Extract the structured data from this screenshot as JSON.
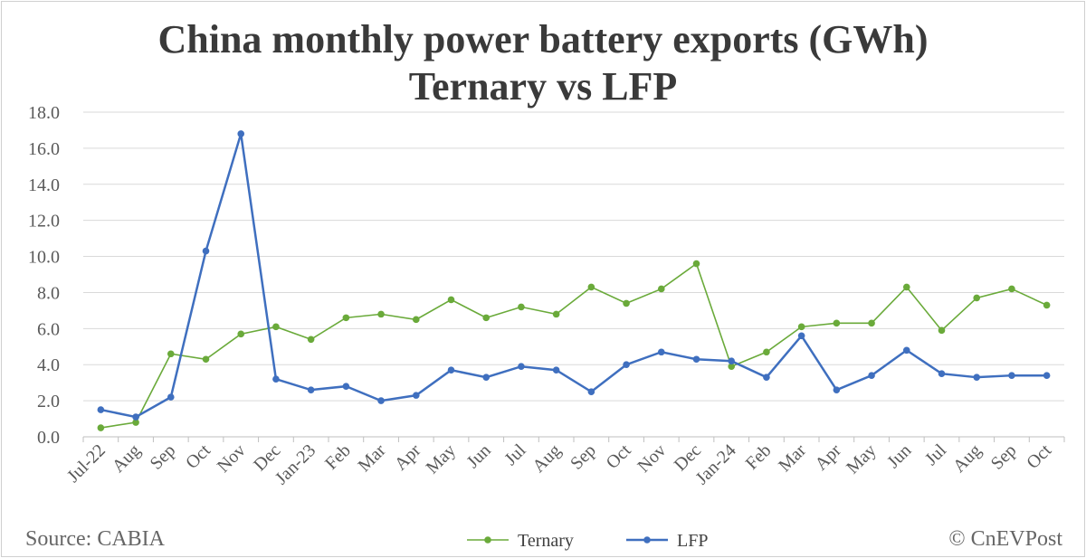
{
  "chart_data": {
    "type": "line",
    "title": "China monthly power battery exports (GWh)",
    "subtitle": "Ternary vs LFP",
    "xlabel": "",
    "ylabel": "",
    "ylim": [
      0,
      18
    ],
    "yticks": [
      "0.0",
      "2.0",
      "4.0",
      "6.0",
      "8.0",
      "10.0",
      "12.0",
      "14.0",
      "16.0",
      "18.0"
    ],
    "grid": true,
    "legend": "bottom",
    "categories": [
      "Jul-22",
      "Aug",
      "Sep",
      "Oct",
      "Nov",
      "Dec",
      "Jan-23",
      "Feb",
      "Mar",
      "Apr",
      "May",
      "Jun",
      "Jul",
      "Aug",
      "Sep",
      "Oct",
      "Nov",
      "Dec",
      "Jan-24",
      "Feb",
      "Mar",
      "Apr",
      "May",
      "Jun",
      "Jul",
      "Aug",
      "Sep",
      "Oct"
    ],
    "series": [
      {
        "name": "Ternary",
        "color": "#6aaa3a",
        "values": [
          0.5,
          0.8,
          4.6,
          4.3,
          5.7,
          6.1,
          5.4,
          6.6,
          6.8,
          6.5,
          7.6,
          6.6,
          7.2,
          6.8,
          8.3,
          7.4,
          8.2,
          9.6,
          3.9,
          4.7,
          6.1,
          6.3,
          6.3,
          8.3,
          5.9,
          7.7,
          8.2,
          7.3
        ]
      },
      {
        "name": "LFP",
        "color": "#3f6fbf",
        "values": [
          1.5,
          1.1,
          2.2,
          10.3,
          16.8,
          3.2,
          2.6,
          2.8,
          2.0,
          2.3,
          3.7,
          3.3,
          3.9,
          3.7,
          2.5,
          4.0,
          4.7,
          4.3,
          4.2,
          3.3,
          5.6,
          2.6,
          3.4,
          4.8,
          3.5,
          3.3,
          3.4,
          3.4
        ]
      }
    ]
  },
  "footer": {
    "source": "Source: CABIA",
    "credit": "© CnEVPost"
  }
}
